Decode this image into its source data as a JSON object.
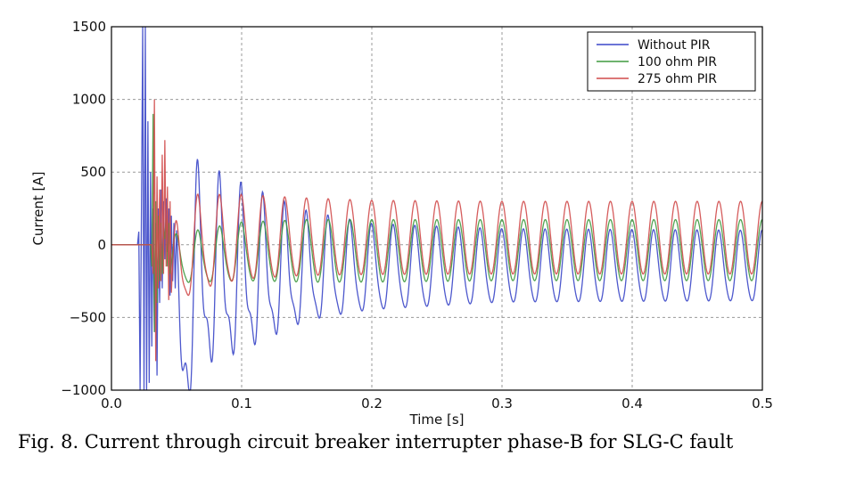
{
  "caption": "Fig. 8. Current through circuit breaker interrupter phase-B for SLG-C fault",
  "chart_data": {
    "type": "line",
    "title": "",
    "xlabel": "Time [s]",
    "ylabel": "Current [A]",
    "xlim": [
      0.0,
      0.5
    ],
    "ylim": [
      -1000,
      1500
    ],
    "xticks": [
      "0.0",
      "0.1",
      "0.2",
      "0.3",
      "0.4",
      "0.5"
    ],
    "yticks": [
      "−1000",
      "−500",
      "0",
      "500",
      "1000",
      "1500"
    ],
    "grid": true,
    "legend_position": "top-right",
    "frequency_hz": 60,
    "series": [
      {
        "name": "Without PIR",
        "color": "#3a46c8",
        "pre_fault_value": 0,
        "transient": {
          "x": [
            0.02,
            0.021,
            0.022,
            0.023,
            0.024,
            0.025,
            0.026,
            0.027,
            0.028,
            0.029,
            0.03,
            0.031,
            0.032,
            0.033,
            0.034,
            0.035,
            0.036,
            0.037,
            0.038,
            0.039,
            0.04,
            0.041,
            0.042,
            0.043,
            0.044,
            0.045,
            0.046,
            0.047,
            0.048,
            0.049,
            0.05
          ],
          "y": [
            0,
            90,
            -1000,
            180,
            1500,
            -1000,
            1500,
            -1000,
            850,
            -950,
            500,
            -700,
            250,
            -600,
            150,
            -900,
            250,
            -400,
            380,
            -300,
            300,
            -100,
            320,
            -50,
            250,
            -350,
            200,
            -250,
            150,
            -300,
            100
          ]
        },
        "steady": {
          "envelope_x": [
            0.05,
            0.1,
            0.15,
            0.2,
            0.3,
            0.4,
            0.5
          ],
          "offset": [
            -250,
            -250,
            -200,
            -180,
            -160,
            -160,
            -160
          ],
          "amplitude": [
            650,
            500,
            350,
            290,
            250,
            245,
            240
          ],
          "harmonic_ratio": [
            0.45,
            0.4,
            0.28,
            0.15,
            0.1,
            0.1,
            0.1
          ]
        }
      },
      {
        "name": "100 ohm PIR",
        "color": "#3f9a3f",
        "pre_fault_value": 0,
        "transient": {
          "x": [
            0.03,
            0.031,
            0.032,
            0.033,
            0.034,
            0.035,
            0.036,
            0.037,
            0.038,
            0.039,
            0.04,
            0.041,
            0.042,
            0.043,
            0.044,
            0.045
          ],
          "y": [
            0,
            -150,
            900,
            -600,
            300,
            -400,
            200,
            -250,
            150,
            -200,
            120,
            40,
            180,
            -150,
            150,
            -200
          ]
        },
        "steady": {
          "envelope_x": [
            0.045,
            0.1,
            0.15,
            0.2,
            0.3,
            0.4,
            0.5
          ],
          "offset": [
            -120,
            -60,
            -50,
            -45,
            -40,
            -40,
            -40
          ],
          "amplitude": [
            160,
            200,
            215,
            215,
            210,
            210,
            210
          ],
          "harmonic_ratio": [
            0.2,
            0.1,
            0.05,
            0.02,
            0.02,
            0.02,
            0.02
          ]
        }
      },
      {
        "name": "275 ohm PIR",
        "color": "#d04a4a",
        "pre_fault_value": 0,
        "transient": {
          "x": [
            0.031,
            0.032,
            0.033,
            0.034,
            0.035,
            0.036,
            0.037,
            0.038,
            0.039,
            0.04,
            0.041,
            0.042,
            0.043,
            0.044,
            0.045,
            0.046
          ],
          "y": [
            0,
            -200,
            1000,
            -800,
            470,
            -300,
            380,
            -250,
            620,
            -200,
            720,
            -150,
            400,
            -380,
            300,
            -330
          ]
        },
        "steady": {
          "envelope_x": [
            0.046,
            0.1,
            0.15,
            0.2,
            0.3,
            0.4,
            0.5
          ],
          "offset": [
            -50,
            25,
            40,
            45,
            45,
            45,
            45
          ],
          "amplitude": [
            330,
            285,
            265,
            255,
            250,
            250,
            250
          ],
          "harmonic_ratio": [
            0.25,
            0.15,
            0.08,
            0.03,
            0.02,
            0.02,
            0.02
          ]
        }
      }
    ]
  }
}
